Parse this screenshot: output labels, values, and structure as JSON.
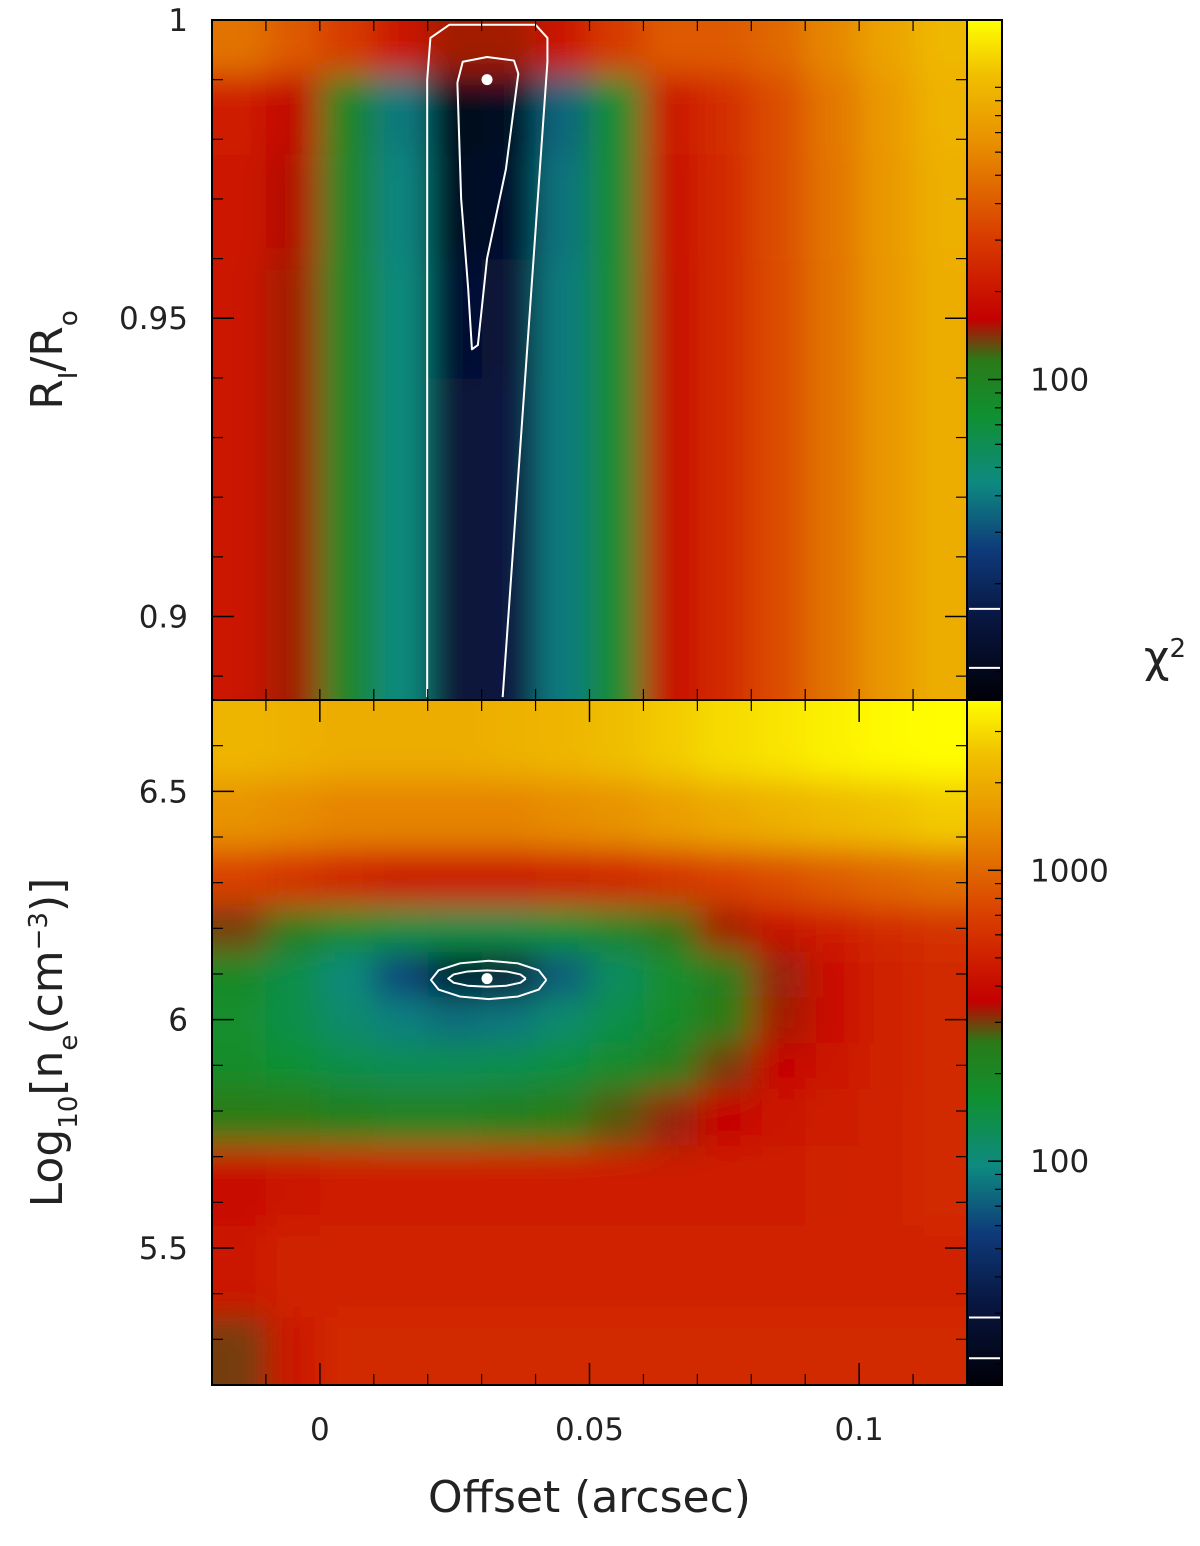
{
  "chart_data": [
    {
      "type": "heatmap",
      "ylabel_parts": [
        {
          "text": "R"
        },
        {
          "text": "I",
          "shift": "sub"
        },
        {
          "text": "/R"
        },
        {
          "text": "o",
          "shift": "sub"
        }
      ],
      "clabel_parts": [
        {
          "text": "χ"
        },
        {
          "text": "2",
          "shift": "super"
        }
      ],
      "x": [
        -0.015,
        -0.005,
        0.005,
        0.015,
        0.025,
        0.035,
        0.045,
        0.055,
        0.065,
        0.075,
        0.085,
        0.095,
        0.105,
        0.115
      ],
      "y": [
        0.89,
        0.91,
        0.93,
        0.95,
        0.97,
        0.985,
        0.997
      ],
      "z": [
        [
          200,
          150,
          90,
          45,
          14,
          15,
          40,
          80,
          180,
          250,
          350,
          500,
          700,
          900
        ],
        [
          200,
          150,
          90,
          45,
          14,
          15,
          40,
          80,
          180,
          250,
          350,
          500,
          700,
          900
        ],
        [
          200,
          150,
          90,
          45,
          14,
          15,
          40,
          80,
          180,
          250,
          350,
          500,
          700,
          900
        ],
        [
          200,
          150,
          90,
          45,
          13,
          14,
          40,
          80,
          180,
          250,
          350,
          500,
          700,
          900
        ],
        [
          210,
          155,
          92,
          43,
          11,
          12,
          38,
          80,
          190,
          255,
          355,
          510,
          710,
          920
        ],
        [
          220,
          160,
          95,
          40,
          10,
          11,
          35,
          80,
          200,
          260,
          360,
          520,
          720,
          950
        ],
        [
          500,
          400,
          300,
          200,
          150,
          150,
          200,
          300,
          400,
          400,
          450,
          600,
          800,
          1000
        ]
      ],
      "xlim": [
        -0.02,
        0.12
      ],
      "ylim": [
        0.886,
        1
      ],
      "yticks": [
        0.9,
        0.95,
        1
      ],
      "yminor_ticks": [
        0.89,
        0.91,
        0.92,
        0.93,
        0.94,
        0.96,
        0.97,
        0.98,
        0.99
      ],
      "xminor_ticks": [
        -0.01,
        0,
        0.01,
        0.02,
        0.03,
        0.04,
        0.05,
        0.06,
        0.07,
        0.08,
        0.09,
        0.1,
        0.11
      ],
      "clim": [
        8,
        1700
      ],
      "log_color": true,
      "cticks": [
        100
      ],
      "cminor_ticks": [
        10,
        20,
        30,
        40,
        50,
        60,
        70,
        80,
        90,
        200,
        300,
        400,
        500,
        600,
        700,
        800,
        900,
        1000
      ],
      "contour_levels": [
        10.3,
        16.4
      ],
      "contours": [
        {
          "x": [
            0.0255,
            0.0265,
            0.031,
            0.036,
            0.0368,
            0.0345,
            0.031,
            0.0293,
            0.0282,
            0.0275,
            0.0262,
            0.0255
          ],
          "y": [
            0.9895,
            0.993,
            0.9938,
            0.9932,
            0.991,
            0.975,
            0.96,
            0.9455,
            0.9448,
            0.955,
            0.97,
            0.9895
          ]
        },
        {
          "x": [
            0.0199,
            0.0199,
            0.0205,
            0.024,
            0.04,
            0.0422,
            0.0422,
            0.0339
          ],
          "y": [
            0.8865,
            0.99,
            0.997,
            0.9992,
            0.9992,
            0.997,
            0.993,
            0.8865
          ]
        }
      ],
      "best_fit": {
        "x": 0.031,
        "y": 0.99
      },
      "colorscale": [
        [
          0,
          "#000008"
        ],
        [
          0.12,
          "#081640"
        ],
        [
          0.22,
          "#0e3a7a"
        ],
        [
          0.32,
          "#0e8a80"
        ],
        [
          0.42,
          "#109030"
        ],
        [
          0.5,
          "#2a7a18"
        ],
        [
          0.56,
          "#c40000"
        ],
        [
          0.68,
          "#d83c00"
        ],
        [
          0.82,
          "#e89000"
        ],
        [
          0.92,
          "#f0c000"
        ],
        [
          1,
          "#ffff00"
        ]
      ]
    },
    {
      "type": "heatmap",
      "xlabel": "Offset (arcsec)",
      "ylabel_parts": [
        {
          "text": "Log"
        },
        {
          "text": "10",
          "shift": "sub"
        },
        {
          "text": "[n"
        },
        {
          "text": "e",
          "shift": "sub"
        },
        {
          "text": "(cm"
        },
        {
          "text": "−3",
          "shift": "super"
        },
        {
          "text": ")]"
        }
      ],
      "x": [
        -0.015,
        -0.005,
        0.005,
        0.015,
        0.025,
        0.035,
        0.045,
        0.055,
        0.065,
        0.075,
        0.085,
        0.095,
        0.105,
        0.115
      ],
      "y": [
        5.25,
        5.45,
        5.65,
        5.8,
        5.9,
        6.0,
        6.1,
        6.2,
        6.3,
        6.45,
        6.6
      ],
      "z": [
        [
          300,
          450,
          550,
          550,
          550,
          550,
          550,
          550,
          550,
          550,
          550,
          550,
          550,
          550
        ],
        [
          450,
          500,
          520,
          520,
          520,
          520,
          520,
          520,
          520,
          520,
          520,
          520,
          520,
          520
        ],
        [
          400,
          450,
          480,
          480,
          480,
          480,
          480,
          480,
          480,
          480,
          480,
          500,
          520,
          550
        ],
        [
          250,
          250,
          230,
          220,
          220,
          230,
          250,
          280,
          320,
          380,
          430,
          480,
          520,
          550
        ],
        [
          180,
          160,
          140,
          130,
          130,
          135,
          150,
          180,
          230,
          300,
          380,
          450,
          500,
          550
        ],
        [
          170,
          140,
          110,
          90,
          80,
          85,
          110,
          140,
          180,
          250,
          330,
          420,
          500,
          550
        ],
        [
          190,
          140,
          100,
          60,
          25,
          30,
          70,
          120,
          170,
          240,
          320,
          420,
          500,
          550
        ],
        [
          300,
          240,
          180,
          150,
          140,
          140,
          160,
          200,
          260,
          330,
          400,
          480,
          550,
          600
        ],
        [
          700,
          600,
          500,
          450,
          450,
          450,
          480,
          520,
          600,
          700,
          800,
          900,
          1000,
          1100
        ],
        [
          1500,
          1400,
          1300,
          1300,
          1300,
          1300,
          1400,
          1500,
          1700,
          1900,
          2100,
          2300,
          2500,
          2700
        ],
        [
          2200,
          2100,
          2000,
          2000,
          2000,
          2100,
          2200,
          2400,
          2700,
          3000,
          3200,
          3500,
          3700,
          3800
        ]
      ],
      "xlim": [
        -0.02,
        0.12
      ],
      "ylim": [
        5.2,
        6.7
      ],
      "xticks": [
        0,
        0.05,
        0.1
      ],
      "xminor_ticks": [
        -0.01,
        0.01,
        0.02,
        0.03,
        0.04,
        0.06,
        0.07,
        0.08,
        0.09,
        0.11
      ],
      "yticks": [
        5.5,
        6,
        6.5
      ],
      "yminor_ticks": [
        5.3,
        5.4,
        5.6,
        5.7,
        5.8,
        5.9,
        6.1,
        6.2,
        6.3,
        6.4,
        6.6
      ],
      "clim": [
        17,
        3850
      ],
      "log_color": true,
      "cticks": [
        100,
        1000
      ],
      "cminor_ticks": [
        20,
        30,
        40,
        50,
        60,
        70,
        80,
        90,
        200,
        300,
        400,
        500,
        600,
        700,
        800,
        900,
        2000,
        3000
      ],
      "contour_levels": [
        21,
        29
      ],
      "contours": [
        {
          "x": [
            0.0382,
            0.0372,
            0.0346,
            0.031,
            0.0274,
            0.0248,
            0.0238,
            0.0248,
            0.0274,
            0.031,
            0.0346,
            0.0372,
            0.0382
          ],
          "y": [
            6.09,
            6.099,
            6.1056,
            6.108,
            6.1056,
            6.099,
            6.09,
            6.081,
            6.0744,
            6.072,
            6.0744,
            6.081,
            6.09
          ]
        },
        {
          "x": [
            0.042,
            0.0406,
            0.0367,
            0.0313,
            0.026,
            0.022,
            0.0206,
            0.022,
            0.026,
            0.0313,
            0.0367,
            0.0406,
            0.042
          ],
          "y": [
            6.087,
            6.108,
            6.1234,
            6.129,
            6.1234,
            6.108,
            6.087,
            6.066,
            6.0506,
            6.045,
            6.0506,
            6.066,
            6.087
          ]
        }
      ],
      "best_fit": {
        "x": 0.031,
        "y": 6.09
      },
      "colorscale": [
        [
          0,
          "#000008"
        ],
        [
          0.12,
          "#081640"
        ],
        [
          0.22,
          "#0e3a7a"
        ],
        [
          0.32,
          "#0e8a80"
        ],
        [
          0.42,
          "#109030"
        ],
        [
          0.5,
          "#2a7a18"
        ],
        [
          0.56,
          "#c40000"
        ],
        [
          0.68,
          "#d83c00"
        ],
        [
          0.82,
          "#e89000"
        ],
        [
          0.92,
          "#f0c000"
        ],
        [
          1,
          "#ffff00"
        ]
      ]
    }
  ]
}
